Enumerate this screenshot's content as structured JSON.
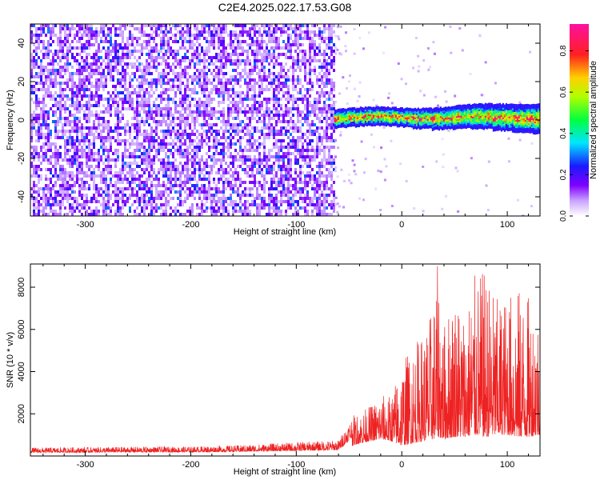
{
  "title": "C2E4.2025.022.17.53.G08",
  "colors": {
    "snr_line": "#ee2222",
    "axis": "#000000",
    "background": "#ffffff"
  },
  "chart_data": [
    {
      "type": "heatmap",
      "name": "spectrogram",
      "xlabel": "Height of straight line (km)",
      "ylabel": "Frequency (Hz)",
      "xlim": [
        -352,
        131
      ],
      "ylim": [
        -50,
        50
      ],
      "xticks": [
        -300,
        -200,
        -100,
        0,
        100
      ],
      "yticks": [
        -40,
        -20,
        0,
        20,
        40
      ],
      "xtick_labels": [
        "-300",
        "-200",
        "-100",
        "0",
        "100"
      ],
      "ytick_labels": [
        "-40",
        "-20",
        "0",
        "20",
        "40"
      ],
      "regions": [
        {
          "label": "noise",
          "x_range": [
            -352,
            -64
          ],
          "freq_range": [
            -50,
            50
          ],
          "amplitude": [
            0.05,
            0.3
          ]
        },
        {
          "label": "sparse",
          "x_range": [
            -64,
            131
          ],
          "freq_range": [
            -50,
            50
          ],
          "amplitude": [
            0.02,
            0.1
          ]
        },
        {
          "label": "signal band",
          "x_range": [
            -64,
            131
          ],
          "center_freq": 1.5,
          "half_width_hz": 3,
          "amplitude": [
            0.2,
            0.9
          ]
        }
      ],
      "colorbar": {
        "label": "Normalized spectral amplitude",
        "range": [
          0,
          0.93
        ],
        "ticks": [
          0.0,
          0.2,
          0.4,
          0.6,
          0.8
        ],
        "tick_labels": [
          "0.0",
          "0.2",
          "0.4",
          "0.6",
          "0.8"
        ]
      }
    },
    {
      "type": "line",
      "name": "snr",
      "xlabel": "Height of straight line (km)",
      "ylabel": "SNR (10 * v/v)",
      "xlim": [
        -352,
        131
      ],
      "ylim": [
        0,
        9100
      ],
      "xticks": [
        -300,
        -200,
        -100,
        0,
        100
      ],
      "yticks": [
        2000,
        4000,
        6000,
        8000
      ],
      "xtick_labels": [
        "-300",
        "-200",
        "-100",
        "0",
        "100"
      ],
      "ytick_labels": [
        "2000",
        "4000",
        "6000",
        "8000"
      ],
      "series": [
        {
          "name": "SNR",
          "envelope_x": [
            -352,
            -300,
            -250,
            -200,
            -150,
            -100,
            -60,
            -47,
            -40,
            -30,
            -20,
            -10,
            0,
            10,
            20,
            30,
            34,
            40,
            50,
            60,
            70,
            80,
            90,
            100,
            110,
            120,
            131
          ],
          "envelope_max": [
            400,
            420,
            440,
            450,
            520,
            650,
            750,
            1900,
            2100,
            2400,
            2900,
            2900,
            4500,
            5300,
            5900,
            7200,
            9100,
            6300,
            8000,
            7000,
            8700,
            8800,
            7500,
            7800,
            8000,
            7600,
            7000
          ],
          "envelope_min": [
            80,
            80,
            90,
            90,
            100,
            110,
            120,
            500,
            600,
            700,
            800,
            700,
            500,
            600,
            700,
            800,
            900,
            800,
            900,
            900,
            1000,
            900,
            1000,
            1000,
            900,
            900,
            1000
          ]
        }
      ]
    }
  ]
}
